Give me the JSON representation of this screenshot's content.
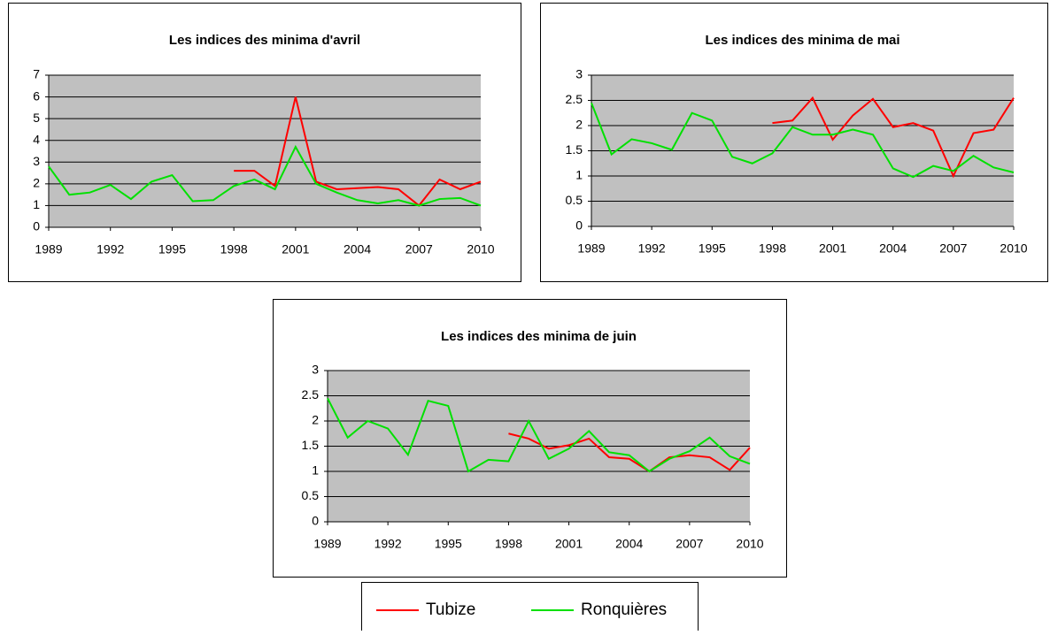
{
  "chart_data": [
    {
      "type": "line",
      "title": "Les indices des minima d'avril",
      "x": [
        1989,
        1990,
        1991,
        1992,
        1993,
        1994,
        1995,
        1996,
        1997,
        1998,
        1999,
        2000,
        2001,
        2002,
        2003,
        2004,
        2005,
        2006,
        2007,
        2008,
        2009,
        2010
      ],
      "xlim": [
        1989,
        2010
      ],
      "xticks": [
        1989,
        1992,
        1995,
        1998,
        2001,
        2004,
        2007,
        2010
      ],
      "ylim": [
        0,
        7
      ],
      "yticks": [
        0,
        1,
        2,
        3,
        4,
        5,
        6,
        7
      ],
      "grid": true,
      "series": [
        {
          "values": [
            null,
            null,
            null,
            null,
            null,
            null,
            null,
            null,
            null,
            2.6,
            2.6,
            1.9,
            6.0,
            2.1,
            1.75,
            1.8,
            1.85,
            1.75,
            1.0,
            2.2,
            1.75,
            2.1
          ]
        },
        {
          "values": [
            2.8,
            1.5,
            1.6,
            1.95,
            1.3,
            2.1,
            2.4,
            1.2,
            1.25,
            1.9,
            2.2,
            1.75,
            3.7,
            2.0,
            1.6,
            1.25,
            1.1,
            1.25,
            1.0,
            1.3,
            1.35,
            1.0
          ]
        }
      ]
    },
    {
      "type": "line",
      "title": "Les indices des minima de mai",
      "x": [
        1989,
        1990,
        1991,
        1992,
        1993,
        1994,
        1995,
        1996,
        1997,
        1998,
        1999,
        2000,
        2001,
        2002,
        2003,
        2004,
        2005,
        2006,
        2007,
        2008,
        2009,
        2010
      ],
      "xlim": [
        1989,
        2010
      ],
      "xticks": [
        1989,
        1992,
        1995,
        1998,
        2001,
        2004,
        2007,
        2010
      ],
      "ylim": [
        0,
        3
      ],
      "yticks": [
        0,
        0.5,
        1,
        1.5,
        2,
        2.5,
        3
      ],
      "grid": true,
      "series": [
        {
          "values": [
            null,
            null,
            null,
            null,
            null,
            null,
            null,
            null,
            null,
            2.05,
            2.1,
            2.55,
            1.72,
            2.2,
            2.53,
            1.97,
            2.05,
            1.9,
            1.0,
            1.85,
            1.92,
            2.55
          ]
        },
        {
          "values": [
            2.45,
            1.43,
            1.73,
            1.65,
            1.52,
            2.25,
            2.1,
            1.38,
            1.25,
            1.45,
            1.97,
            1.82,
            1.82,
            1.92,
            1.82,
            1.15,
            0.98,
            1.2,
            1.1,
            1.4,
            1.17,
            1.07
          ]
        }
      ]
    },
    {
      "type": "line",
      "title": "Les indices des minima de juin",
      "x": [
        1989,
        1990,
        1991,
        1992,
        1993,
        1994,
        1995,
        1996,
        1997,
        1998,
        1999,
        2000,
        2001,
        2002,
        2003,
        2004,
        2005,
        2006,
        2007,
        2008,
        2009,
        2010
      ],
      "xlim": [
        1989,
        2010
      ],
      "xticks": [
        1989,
        1992,
        1995,
        1998,
        2001,
        2004,
        2007,
        2010
      ],
      "ylim": [
        0,
        3
      ],
      "yticks": [
        0,
        0.5,
        1,
        1.5,
        2,
        2.5,
        3
      ],
      "grid": true,
      "series": [
        {
          "values": [
            null,
            null,
            null,
            null,
            null,
            null,
            null,
            null,
            null,
            1.75,
            1.65,
            1.45,
            1.52,
            1.65,
            1.28,
            1.25,
            1.0,
            1.28,
            1.32,
            1.28,
            1.03,
            1.47
          ]
        },
        {
          "values": [
            2.45,
            1.67,
            2.0,
            1.85,
            1.33,
            2.4,
            2.3,
            1.0,
            1.23,
            1.2,
            2.0,
            1.25,
            1.45,
            1.8,
            1.38,
            1.32,
            1.0,
            1.25,
            1.4,
            1.67,
            1.3,
            1.15
          ]
        }
      ]
    }
  ],
  "legend": [
    {
      "name": "Tubize",
      "color": "#ff0000"
    },
    {
      "name": "Ronquières",
      "color": "#00e000"
    }
  ]
}
